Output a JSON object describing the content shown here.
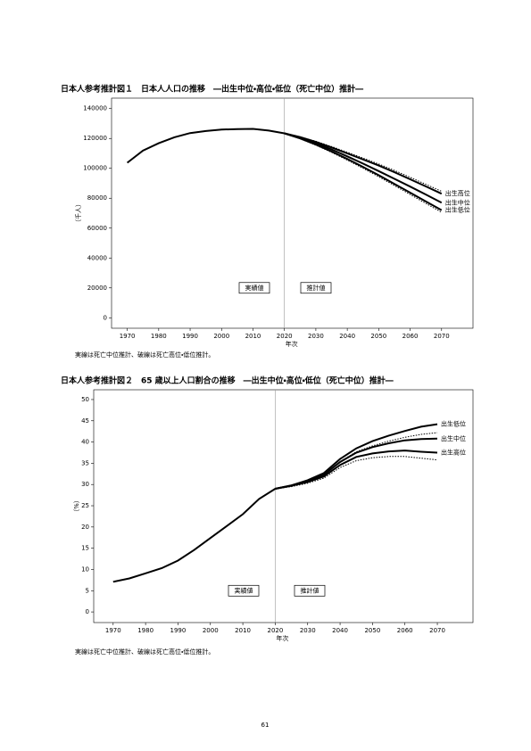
{
  "chart_data": [
    {
      "type": "line",
      "title": "日本人参考推計図１　日本人人口の推移　―出生中位・高位・低位（死亡中位）推計―",
      "ylabel": "（千人）",
      "xlabel": "年次",
      "note": "実線は死亡中位推計、破線は死亡高位・低位推計。",
      "annotations": [
        "実績値",
        "推計値"
      ],
      "divider": 2020,
      "xlim": [
        1965,
        2080
      ],
      "xticks": [
        1970,
        1980,
        1990,
        2000,
        2010,
        2020,
        2030,
        2040,
        2050,
        2060,
        2070
      ],
      "ylim": [
        -7000,
        147000
      ],
      "yticks": [
        0,
        20000,
        40000,
        60000,
        80000,
        100000,
        120000,
        140000
      ],
      "series": [
        {
          "color": "#000000",
          "x": [
            1970,
            1975,
            1980,
            1985,
            1990,
            1995,
            2000,
            2005,
            2010,
            2015,
            2020
          ],
          "values": [
            103700,
            111900,
            116800,
            120800,
            123600,
            125000,
            126000,
            126200,
            126400,
            125300,
            123400
          ]
        },
        {
          "name": "出生高位",
          "color": "#000000",
          "x": [
            2020,
            2025,
            2030,
            2035,
            2040,
            2045,
            2050,
            2055,
            2060,
            2065,
            2070
          ],
          "values": [
            123400,
            120900,
            117700,
            114000,
            110000,
            106000,
            101900,
            97400,
            92700,
            87900,
            83000
          ]
        },
        {
          "name": "出生中位",
          "color": "#000000",
          "x": [
            2020,
            2025,
            2030,
            2035,
            2040,
            2045,
            2050,
            2055,
            2060,
            2065,
            2070
          ],
          "values": [
            123400,
            120400,
            116800,
            112600,
            108000,
            103200,
            98200,
            93000,
            87800,
            82500,
            77000
          ]
        },
        {
          "name": "出生低位",
          "color": "#000000",
          "x": [
            2020,
            2025,
            2030,
            2035,
            2040,
            2045,
            2050,
            2055,
            2060,
            2065,
            2070
          ],
          "values": [
            123400,
            120000,
            115900,
            111300,
            106300,
            101000,
            95400,
            89600,
            83700,
            77800,
            72000
          ]
        },
        {
          "color": "#000000",
          "dashed": true,
          "x": [
            2020,
            2025,
            2030,
            2035,
            2040,
            2045,
            2050,
            2055,
            2060,
            2065,
            2070
          ],
          "values": [
            123400,
            121100,
            118100,
            114600,
            110800,
            106900,
            102900,
            98600,
            94000,
            89300,
            84600
          ]
        },
        {
          "color": "#000000",
          "dashed": true,
          "x": [
            2020,
            2025,
            2030,
            2035,
            2040,
            2045,
            2050,
            2055,
            2060,
            2065,
            2070
          ],
          "values": [
            123400,
            119800,
            115500,
            110700,
            105500,
            100100,
            94400,
            88500,
            82500,
            76500,
            70600
          ]
        }
      ]
    },
    {
      "type": "line",
      "title": "日本人参考推計図２　65 歳以上人口割合の推移　―出生中位・高位・低位（死亡中位）推計―",
      "ylabel": "（%）",
      "xlabel": "年次",
      "note": "実線は死亡中位推計、破線は死亡高位・低位推計。",
      "annotations": [
        "実績値",
        "推計値"
      ],
      "divider": 2020,
      "xlim": [
        1964,
        2081
      ],
      "xticks": [
        1970,
        1980,
        1990,
        2000,
        2010,
        2020,
        2030,
        2040,
        2050,
        2060,
        2070
      ],
      "ylim": [
        -2.5,
        52.3
      ],
      "yticks": [
        0,
        5,
        10,
        15,
        20,
        25,
        30,
        35,
        40,
        45,
        50
      ],
      "series": [
        {
          "color": "#000000",
          "x": [
            1970,
            1975,
            1980,
            1985,
            1990,
            1995,
            2000,
            2005,
            2010,
            2015,
            2020
          ],
          "values": [
            7.1,
            7.9,
            9.1,
            10.3,
            12.1,
            14.6,
            17.4,
            20.2,
            23.0,
            26.6,
            29.0
          ]
        },
        {
          "name": "出生低位",
          "color": "#000000",
          "x": [
            2020,
            2025,
            2030,
            2035,
            2040,
            2045,
            2050,
            2055,
            2060,
            2065,
            2070
          ],
          "values": [
            29.0,
            29.8,
            31.0,
            32.7,
            36.0,
            38.5,
            40.2,
            41.5,
            42.6,
            43.6,
            44.2
          ]
        },
        {
          "name": "出生中位",
          "color": "#000000",
          "x": [
            2020,
            2025,
            2030,
            2035,
            2040,
            2045,
            2050,
            2055,
            2060,
            2065,
            2070
          ],
          "values": [
            29.0,
            29.8,
            30.8,
            32.3,
            35.3,
            37.5,
            38.8,
            39.7,
            40.4,
            40.7,
            40.8
          ]
        },
        {
          "name": "出生高位",
          "color": "#000000",
          "x": [
            2020,
            2025,
            2030,
            2035,
            2040,
            2045,
            2050,
            2055,
            2060,
            2065,
            2070
          ],
          "values": [
            29.0,
            29.7,
            30.6,
            31.9,
            34.6,
            36.5,
            37.3,
            37.8,
            38.0,
            37.7,
            37.5
          ]
        },
        {
          "color": "#000000",
          "dashed": true,
          "x": [
            2020,
            2025,
            2030,
            2035,
            2040,
            2045,
            2050,
            2055,
            2060,
            2065,
            2070
          ],
          "values": [
            29.0,
            29.6,
            30.6,
            32.2,
            35.4,
            37.7,
            39.1,
            40.2,
            41.1,
            41.8,
            42.2
          ]
        },
        {
          "color": "#000000",
          "dashed": true,
          "x": [
            2020,
            2025,
            2030,
            2035,
            2040,
            2045,
            2050,
            2055,
            2060,
            2065,
            2070
          ],
          "values": [
            29.0,
            29.5,
            30.3,
            31.5,
            34.0,
            35.6,
            36.3,
            36.6,
            36.6,
            36.2,
            35.8
          ]
        }
      ]
    }
  ],
  "page_number": "61"
}
